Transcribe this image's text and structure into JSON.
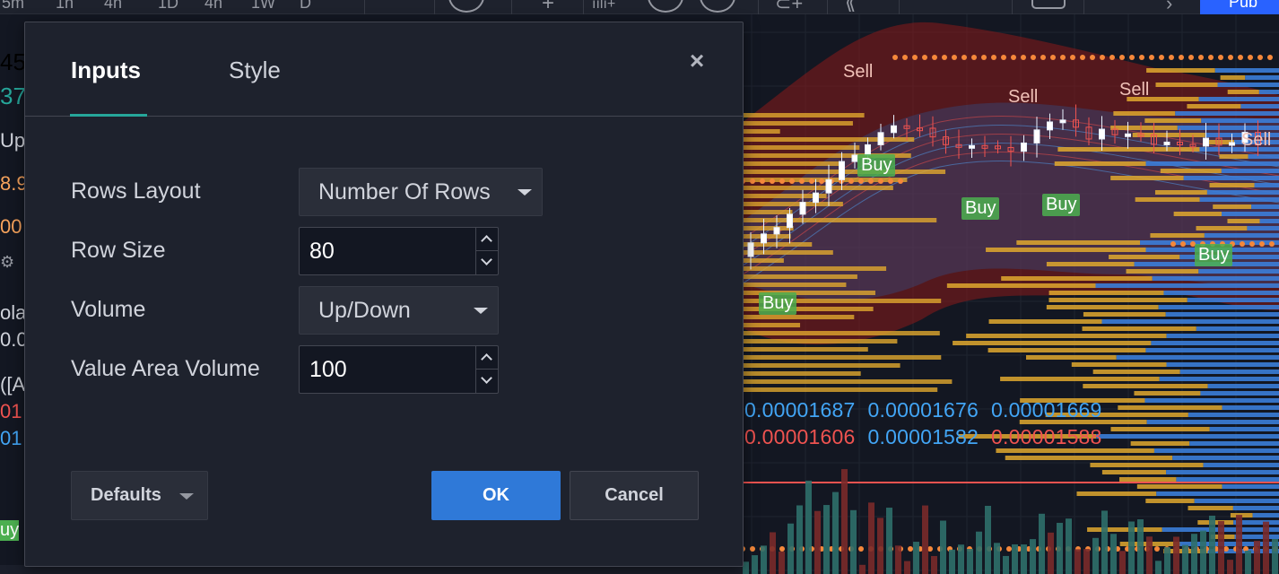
{
  "toolbar": {
    "fragments": [
      "5m",
      "1h",
      "4h",
      "1D",
      "4h",
      "1W",
      "D"
    ],
    "publish_label": "Pub"
  },
  "left_panel": {
    "fragments": [
      {
        "text": "45",
        "color": "#d1d4dc"
      },
      {
        "text": "37",
        "color": "#26a69a"
      },
      {
        "text": "Up/",
        "color": "#d1d4dc"
      },
      {
        "text": "8.9",
        "color": "#f7a35c"
      },
      {
        "text": "00",
        "color": "#f7a35c"
      },
      {
        "text": "ola",
        "color": "#d1d4dc"
      },
      {
        "text": "0.0",
        "color": "#d1d4dc"
      },
      {
        "text": "([A",
        "color": "#d1d4dc"
      },
      {
        "text": "01",
        "color": "#ef5350"
      },
      {
        "text": "01",
        "color": "#42a5f5"
      },
      {
        "text": "uy",
        "color": "#ffffff"
      }
    ]
  },
  "chart": {
    "signals": [
      {
        "type": "sell",
        "text": "Sell"
      },
      {
        "type": "sell",
        "text": "Sell"
      },
      {
        "type": "sell",
        "text": "Sell"
      },
      {
        "type": "sell",
        "text": "Sell"
      },
      {
        "type": "buy",
        "text": "Buy"
      },
      {
        "type": "buy",
        "text": "Buy"
      },
      {
        "type": "buy",
        "text": "Buy"
      },
      {
        "type": "buy",
        "text": "Buy"
      },
      {
        "type": "buy",
        "text": "Buy"
      }
    ],
    "price_rows": [
      [
        {
          "text": "0.00001687",
          "color": "#42a5f5"
        },
        {
          "text": "0.00001676",
          "color": "#42a5f5"
        },
        {
          "text": "0.00001669",
          "color": "#42a5f5"
        }
      ],
      [
        {
          "text": "0.00001606",
          "color": "#ef5350"
        },
        {
          "text": "0.00001582",
          "color": "#42a5f5"
        },
        {
          "text": "0.00001588",
          "color": "#ef5350"
        }
      ]
    ],
    "colors": {
      "volume_up": "#e0a82e",
      "volume_down": "#3b7dd8",
      "dot_orange": "#f5883b",
      "band_red": "#8b1a1a",
      "band_blue": "#2a5a9a"
    }
  },
  "dialog": {
    "tabs": {
      "inputs": "Inputs",
      "style": "Style"
    },
    "close": "×",
    "fields": {
      "rows_layout": {
        "label": "Rows Layout",
        "value": "Number Of Rows"
      },
      "row_size": {
        "label": "Row Size",
        "value": "80"
      },
      "volume": {
        "label": "Volume",
        "value": "Up/Down"
      },
      "value_area_volume": {
        "label": "Value Area Volume",
        "value": "100"
      }
    },
    "buttons": {
      "defaults": "Defaults",
      "ok": "OK",
      "cancel": "Cancel"
    }
  }
}
